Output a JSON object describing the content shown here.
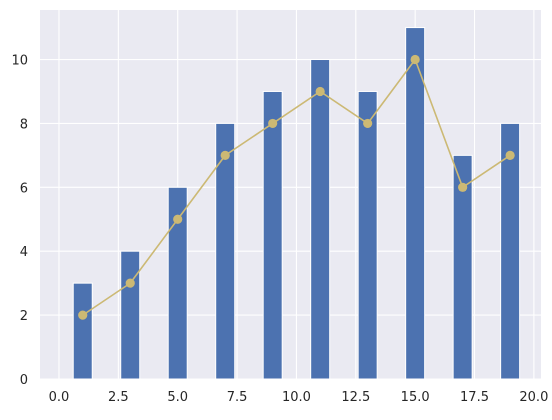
{
  "chart_data": {
    "type": "bar",
    "title": "",
    "xlabel": "",
    "ylabel": "",
    "xlim": [
      -0.8,
      20.3
    ],
    "ylim": [
      0,
      11.55
    ],
    "grid": true,
    "colors": {
      "background": "#eaeaf2",
      "grid": "#ffffff",
      "bar": "#4c72b0",
      "line": "#ccb974"
    },
    "x_ticks": [
      {
        "value": 0,
        "label": "0.0"
      },
      {
        "value": 2.5,
        "label": "2.5"
      },
      {
        "value": 5,
        "label": "5.0"
      },
      {
        "value": 7.5,
        "label": "7.5"
      },
      {
        "value": 10,
        "label": "10.0"
      },
      {
        "value": 12.5,
        "label": "12.5"
      },
      {
        "value": 15,
        "label": "15.0"
      },
      {
        "value": 17.5,
        "label": "17.5"
      },
      {
        "value": 20,
        "label": "20.0"
      }
    ],
    "y_ticks": [
      {
        "value": 0,
        "label": "0"
      },
      {
        "value": 2,
        "label": "2"
      },
      {
        "value": 4,
        "label": "4"
      },
      {
        "value": 6,
        "label": "6"
      },
      {
        "value": 8,
        "label": "8"
      },
      {
        "value": 10,
        "label": "10"
      }
    ],
    "series": [
      {
        "kind": "bar",
        "bar_width": 0.8,
        "x": [
          1,
          3,
          5,
          7,
          9,
          11,
          13,
          15,
          17,
          19
        ],
        "values": [
          3,
          4,
          6,
          8,
          9,
          10,
          9,
          11,
          7,
          8
        ]
      },
      {
        "kind": "line",
        "marker": "circle",
        "x": [
          1,
          3,
          5,
          7,
          9,
          11,
          13,
          15,
          17,
          19
        ],
        "values": [
          2,
          3,
          5,
          7,
          8,
          9,
          8,
          10,
          6,
          7
        ]
      }
    ]
  }
}
